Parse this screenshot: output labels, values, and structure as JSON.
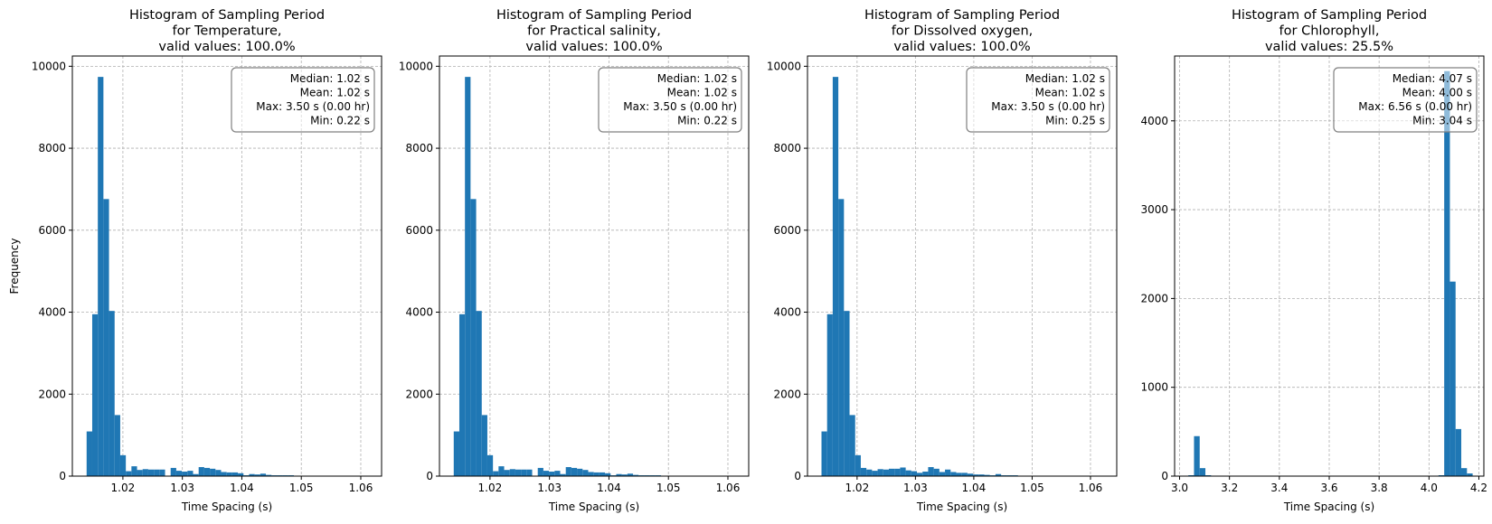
{
  "chart_data": [
    {
      "type": "bar",
      "title_lines": [
        "Histogram of Sampling Period",
        "for Temperature,",
        "valid values: 100.0%"
      ],
      "xlabel": "Time Spacing (s)",
      "ylabel": "Frequency",
      "xlim": [
        1.0115,
        1.0635
      ],
      "ylim": [
        0,
        10250
      ],
      "xticks": [
        1.02,
        1.03,
        1.04,
        1.05,
        1.06
      ],
      "xtick_labels": [
        "1.02",
        "1.03",
        "1.04",
        "1.05",
        "1.06"
      ],
      "yticks": [
        0,
        2000,
        4000,
        6000,
        8000,
        10000
      ],
      "ytick_labels": [
        "0",
        "2000",
        "4000",
        "6000",
        "8000",
        "10000"
      ],
      "grid": true,
      "stats_box": [
        "Median: 1.02 s",
        "Mean: 1.02 s",
        "Max: 3.50 s (0.00 hr)",
        "Min: 0.22 s"
      ],
      "stats_box_position": "top-right",
      "bar_color": "#1f77b4",
      "bin_start": 1.0139,
      "bin_width": 0.000942,
      "values": [
        1090,
        3950,
        9740,
        6760,
        4030,
        1490,
        510,
        120,
        240,
        150,
        170,
        160,
        160,
        160,
        10,
        200,
        130,
        110,
        130,
        50,
        220,
        200,
        180,
        150,
        100,
        90,
        90,
        70,
        20,
        50,
        40,
        60,
        30,
        20,
        20,
        20,
        20,
        10,
        10,
        10,
        5,
        5,
        5,
        5,
        5,
        5,
        5,
        5,
        5,
        5
      ]
    },
    {
      "type": "bar",
      "title_lines": [
        "Histogram of Sampling Period",
        "for Practical salinity,",
        "valid values: 100.0%"
      ],
      "xlabel": "Time Spacing (s)",
      "ylabel": "",
      "xlim": [
        1.0115,
        1.0635
      ],
      "ylim": [
        0,
        10250
      ],
      "xticks": [
        1.02,
        1.03,
        1.04,
        1.05,
        1.06
      ],
      "xtick_labels": [
        "1.02",
        "1.03",
        "1.04",
        "1.05",
        "1.06"
      ],
      "yticks": [
        0,
        2000,
        4000,
        6000,
        8000,
        10000
      ],
      "ytick_labels": [
        "0",
        "2000",
        "4000",
        "6000",
        "8000",
        "10000"
      ],
      "grid": true,
      "stats_box": [
        "Median: 1.02 s",
        "Mean: 1.02 s",
        "Max: 3.50 s (0.00 hr)",
        "Min: 0.22 s"
      ],
      "stats_box_position": "top-right",
      "bar_color": "#1f77b4",
      "bin_start": 1.0139,
      "bin_width": 0.000942,
      "values": [
        1090,
        3950,
        9740,
        6760,
        4030,
        1490,
        510,
        120,
        240,
        150,
        170,
        160,
        160,
        160,
        10,
        200,
        130,
        110,
        130,
        50,
        220,
        200,
        180,
        150,
        100,
        90,
        90,
        70,
        20,
        50,
        40,
        60,
        30,
        20,
        20,
        20,
        20,
        10,
        10,
        10,
        5,
        5,
        5,
        5,
        5,
        5,
        5,
        5,
        5,
        5
      ]
    },
    {
      "type": "bar",
      "title_lines": [
        "Histogram of Sampling Period",
        "for Dissolved oxygen,",
        "valid values: 100.0%"
      ],
      "xlabel": "Time Spacing (s)",
      "ylabel": "",
      "xlim": [
        1.0115,
        1.0645
      ],
      "ylim": [
        0,
        10250
      ],
      "xticks": [
        1.02,
        1.03,
        1.04,
        1.05,
        1.06
      ],
      "xtick_labels": [
        "1.02",
        "1.03",
        "1.04",
        "1.05",
        "1.06"
      ],
      "yticks": [
        0,
        2000,
        4000,
        6000,
        8000,
        10000
      ],
      "ytick_labels": [
        "0",
        "2000",
        "4000",
        "6000",
        "8000",
        "10000"
      ],
      "grid": true,
      "stats_box": [
        "Median: 1.02 s",
        "Mean: 1.02 s",
        "Max: 3.50 s (0.00 hr)",
        "Min: 0.25 s"
      ],
      "stats_box_position": "top-right",
      "bar_color": "#1f77b4",
      "bin_start": 1.0139,
      "bin_width": 0.000962,
      "values": [
        1090,
        3950,
        9740,
        6760,
        4030,
        1490,
        510,
        200,
        160,
        130,
        170,
        160,
        180,
        180,
        210,
        140,
        120,
        80,
        110,
        220,
        180,
        100,
        160,
        100,
        80,
        80,
        60,
        40,
        40,
        30,
        20,
        50,
        20,
        20,
        20,
        10,
        10,
        10,
        10,
        10,
        5,
        5,
        5,
        5,
        5,
        5,
        5,
        5,
        5,
        5
      ]
    },
    {
      "type": "bar",
      "title_lines": [
        "Histogram of Sampling Period",
        "for Chlorophyll,",
        "valid values: 25.5%"
      ],
      "xlabel": "Time Spacing (s)",
      "ylabel": "",
      "xlim": [
        2.98,
        4.22
      ],
      "ylim": [
        0,
        4730
      ],
      "xticks": [
        3.0,
        3.2,
        3.4,
        3.6,
        3.8,
        4.0,
        4.2
      ],
      "xtick_labels": [
        "3.0",
        "3.2",
        "3.4",
        "3.6",
        "3.8",
        "4.0",
        "4.2"
      ],
      "yticks": [
        0,
        1000,
        2000,
        3000,
        4000
      ],
      "ytick_labels": [
        "0",
        "1000",
        "2000",
        "3000",
        "4000"
      ],
      "grid": true,
      "stats_box": [
        "Median: 4.07 s",
        "Mean: 4.00 s",
        "Max: 6.56 s (0.00 hr)",
        "Min: 3.04 s"
      ],
      "stats_box_position": "top-right",
      "bar_color": "#1f77b4",
      "bin_start": 3.035,
      "bin_width": 0.0228,
      "values": [
        10,
        450,
        90,
        10,
        5,
        0,
        0,
        0,
        0,
        0,
        0,
        0,
        0,
        0,
        0,
        0,
        0,
        0,
        0,
        0,
        0,
        0,
        0,
        0,
        0,
        0,
        0,
        0,
        0,
        0,
        0,
        0,
        0,
        0,
        0,
        0,
        0,
        0,
        0,
        0,
        0,
        0,
        0,
        0,
        10,
        4560,
        2190,
        530,
        90,
        30
      ]
    }
  ]
}
